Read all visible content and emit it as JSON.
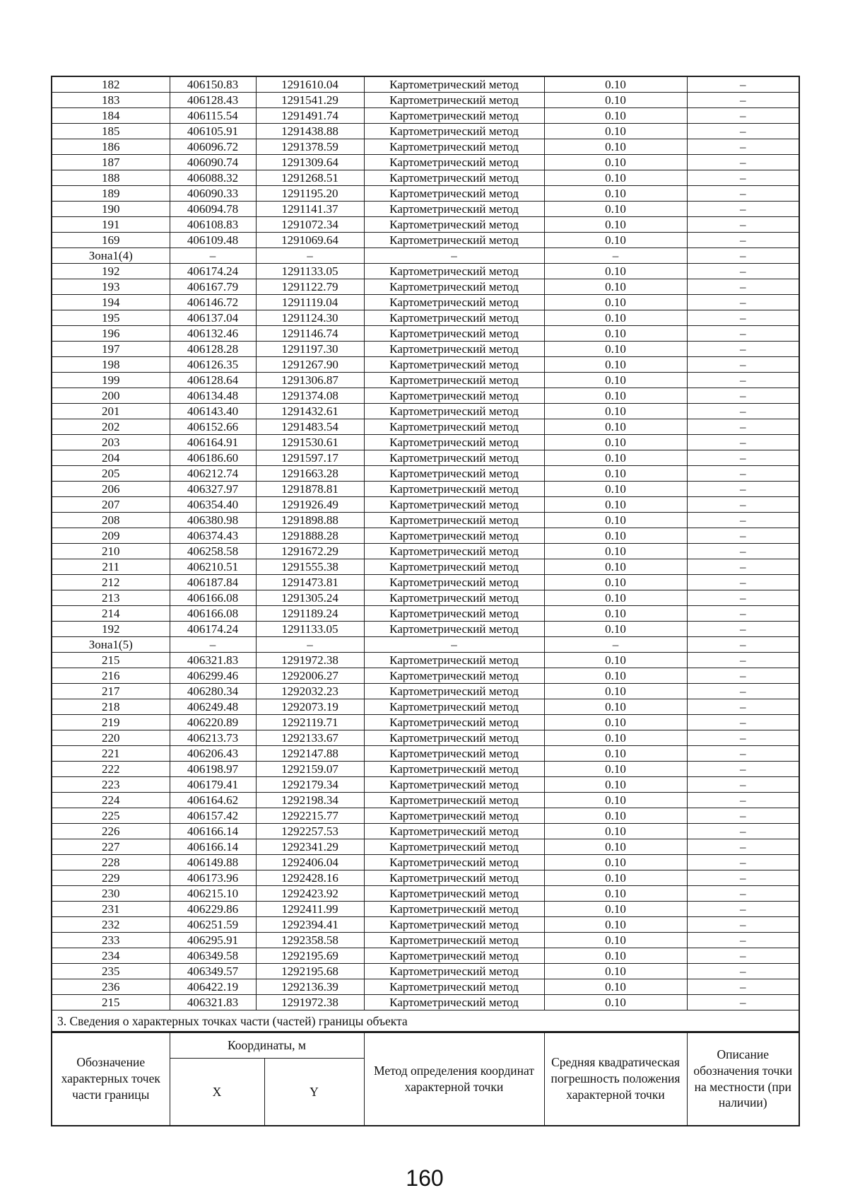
{
  "page": {
    "number": "160"
  },
  "section3_title": "3. Сведения о характерных точках части (частей) границы объекта",
  "table": {
    "method_value": "Картометрический метод",
    "error_value": "0.10",
    "dash": "–",
    "rows": [
      {
        "n": "182",
        "x": "406150.83",
        "y": "1291610.04"
      },
      {
        "n": "183",
        "x": "406128.43",
        "y": "1291541.29"
      },
      {
        "n": "184",
        "x": "406115.54",
        "y": "1291491.74"
      },
      {
        "n": "185",
        "x": "406105.91",
        "y": "1291438.88"
      },
      {
        "n": "186",
        "x": "406096.72",
        "y": "1291378.59"
      },
      {
        "n": "187",
        "x": "406090.74",
        "y": "1291309.64"
      },
      {
        "n": "188",
        "x": "406088.32",
        "y": "1291268.51"
      },
      {
        "n": "189",
        "x": "406090.33",
        "y": "1291195.20"
      },
      {
        "n": "190",
        "x": "406094.78",
        "y": "1291141.37"
      },
      {
        "n": "191",
        "x": "406108.83",
        "y": "1291072.34"
      },
      {
        "n": "169",
        "x": "406109.48",
        "y": "1291069.64"
      },
      {
        "zone": true,
        "n": "Зона1(4)"
      },
      {
        "n": "192",
        "x": "406174.24",
        "y": "1291133.05"
      },
      {
        "n": "193",
        "x": "406167.79",
        "y": "1291122.79"
      },
      {
        "n": "194",
        "x": "406146.72",
        "y": "1291119.04"
      },
      {
        "n": "195",
        "x": "406137.04",
        "y": "1291124.30"
      },
      {
        "n": "196",
        "x": "406132.46",
        "y": "1291146.74"
      },
      {
        "n": "197",
        "x": "406128.28",
        "y": "1291197.30"
      },
      {
        "n": "198",
        "x": "406126.35",
        "y": "1291267.90"
      },
      {
        "n": "199",
        "x": "406128.64",
        "y": "1291306.87"
      },
      {
        "n": "200",
        "x": "406134.48",
        "y": "1291374.08"
      },
      {
        "n": "201",
        "x": "406143.40",
        "y": "1291432.61"
      },
      {
        "n": "202",
        "x": "406152.66",
        "y": "1291483.54"
      },
      {
        "n": "203",
        "x": "406164.91",
        "y": "1291530.61"
      },
      {
        "n": "204",
        "x": "406186.60",
        "y": "1291597.17"
      },
      {
        "n": "205",
        "x": "406212.74",
        "y": "1291663.28"
      },
      {
        "n": "206",
        "x": "406327.97",
        "y": "1291878.81"
      },
      {
        "n": "207",
        "x": "406354.40",
        "y": "1291926.49"
      },
      {
        "n": "208",
        "x": "406380.98",
        "y": "1291898.88"
      },
      {
        "n": "209",
        "x": "406374.43",
        "y": "1291888.28"
      },
      {
        "n": "210",
        "x": "406258.58",
        "y": "1291672.29"
      },
      {
        "n": "211",
        "x": "406210.51",
        "y": "1291555.38"
      },
      {
        "n": "212",
        "x": "406187.84",
        "y": "1291473.81"
      },
      {
        "n": "213",
        "x": "406166.08",
        "y": "1291305.24"
      },
      {
        "n": "214",
        "x": "406166.08",
        "y": "1291189.24"
      },
      {
        "n": "192",
        "x": "406174.24",
        "y": "1291133.05"
      },
      {
        "zone": true,
        "n": "Зона1(5)"
      },
      {
        "n": "215",
        "x": "406321.83",
        "y": "1291972.38"
      },
      {
        "n": "216",
        "x": "406299.46",
        "y": "1292006.27"
      },
      {
        "n": "217",
        "x": "406280.34",
        "y": "1292032.23"
      },
      {
        "n": "218",
        "x": "406249.48",
        "y": "1292073.19"
      },
      {
        "n": "219",
        "x": "406220.89",
        "y": "1292119.71"
      },
      {
        "n": "220",
        "x": "406213.73",
        "y": "1292133.67"
      },
      {
        "n": "221",
        "x": "406206.43",
        "y": "1292147.88"
      },
      {
        "n": "222",
        "x": "406198.97",
        "y": "1292159.07"
      },
      {
        "n": "223",
        "x": "406179.41",
        "y": "1292179.34"
      },
      {
        "n": "224",
        "x": "406164.62",
        "y": "1292198.34"
      },
      {
        "n": "225",
        "x": "406157.42",
        "y": "1292215.77"
      },
      {
        "n": "226",
        "x": "406166.14",
        "y": "1292257.53"
      },
      {
        "n": "227",
        "x": "406166.14",
        "y": "1292341.29"
      },
      {
        "n": "228",
        "x": "406149.88",
        "y": "1292406.04"
      },
      {
        "n": "229",
        "x": "406173.96",
        "y": "1292428.16"
      },
      {
        "n": "230",
        "x": "406215.10",
        "y": "1292423.92"
      },
      {
        "n": "231",
        "x": "406229.86",
        "y": "1292411.99"
      },
      {
        "n": "232",
        "x": "406251.59",
        "y": "1292394.41"
      },
      {
        "n": "233",
        "x": "406295.91",
        "y": "1292358.58"
      },
      {
        "n": "234",
        "x": "406349.58",
        "y": "1292195.69"
      },
      {
        "n": "235",
        "x": "406349.57",
        "y": "1292195.68"
      },
      {
        "n": "236",
        "x": "406422.19",
        "y": "1292136.39"
      },
      {
        "n": "215",
        "x": "406321.83",
        "y": "1291972.38"
      }
    ]
  },
  "header": {
    "point_label": "Обозначение характерных точек части границы",
    "coords_label": "Координаты, м",
    "x_label": "X",
    "y_label": "Y",
    "method_label": "Метод определения координат характерной точки",
    "error_label": "Средняя квадратическая погрешность положения характерной точки",
    "desc_label": "Описание обозначения точки на местности (при наличии)"
  }
}
